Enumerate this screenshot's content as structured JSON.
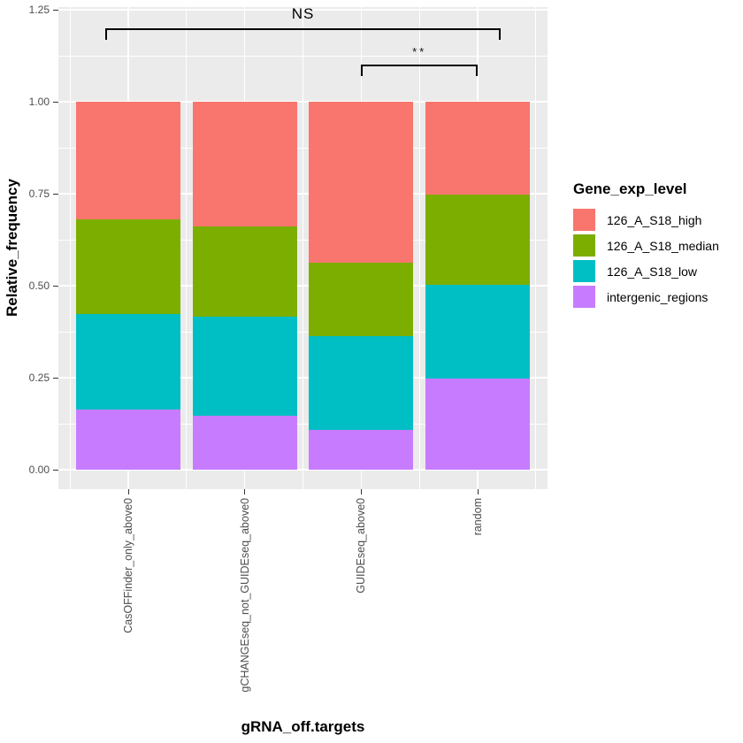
{
  "figure": {
    "x_axis_title": "gRNA_off.targets",
    "y_axis_title": "Relative_frequency"
  },
  "legend": {
    "title": "Gene_exp_level",
    "position": "right"
  },
  "colors": {
    "panel_background": "#EBEBEB",
    "gridline": "#FFFFFF",
    "axis_text": "#4D4D4D",
    "axis_title": "#000000",
    "bracket": "#000000",
    "high": "#F8766D",
    "median": "#7CAE00",
    "low": "#00BFC4",
    "intergenic": "#C77CFF"
  },
  "chart_data": {
    "type": "bar",
    "stacked": true,
    "title": "",
    "xlabel": "gRNA_off.targets",
    "ylabel": "Relative_frequency",
    "ylim": [
      0,
      1.25
    ],
    "grid": true,
    "legend_position": "right",
    "legend_title": "Gene_exp_level",
    "categories": [
      "CasOFFinder_only_above0",
      "gCHANGEseq_not_GUIDEseq_above0",
      "GUIDEseq_above0",
      "random"
    ],
    "y_ticks": [
      {
        "label": "0.00",
        "value": 0
      },
      {
        "label": "0.25",
        "value": 0.25
      },
      {
        "label": "0.50",
        "value": 0.5
      },
      {
        "label": "0.75",
        "value": 0.75
      },
      {
        "label": "1.00",
        "value": 1
      },
      {
        "label": "1.25",
        "value": 1.25
      }
    ],
    "series": [
      {
        "name": "intergenic_regions",
        "color": "#C77CFF",
        "values": [
          0.163,
          0.147,
          0.109,
          0.247
        ]
      },
      {
        "name": "126_A_S18_low",
        "color": "#00BFC4",
        "values": [
          0.26,
          0.268,
          0.254,
          0.256
        ]
      },
      {
        "name": "126_A_S18_median",
        "color": "#7CAE00",
        "values": [
          0.258,
          0.246,
          0.2,
          0.245
        ]
      },
      {
        "name": "126_A_S18_high",
        "color": "#F8766D",
        "values": [
          0.319,
          0.339,
          0.437,
          0.252
        ]
      }
    ],
    "annotations": [
      {
        "label": "NS",
        "x1": 0.8,
        "x2": 4.2,
        "y": 1.2
      },
      {
        "label": "**",
        "x1": 3.0,
        "x2": 4.0,
        "y": 1.1
      }
    ]
  }
}
